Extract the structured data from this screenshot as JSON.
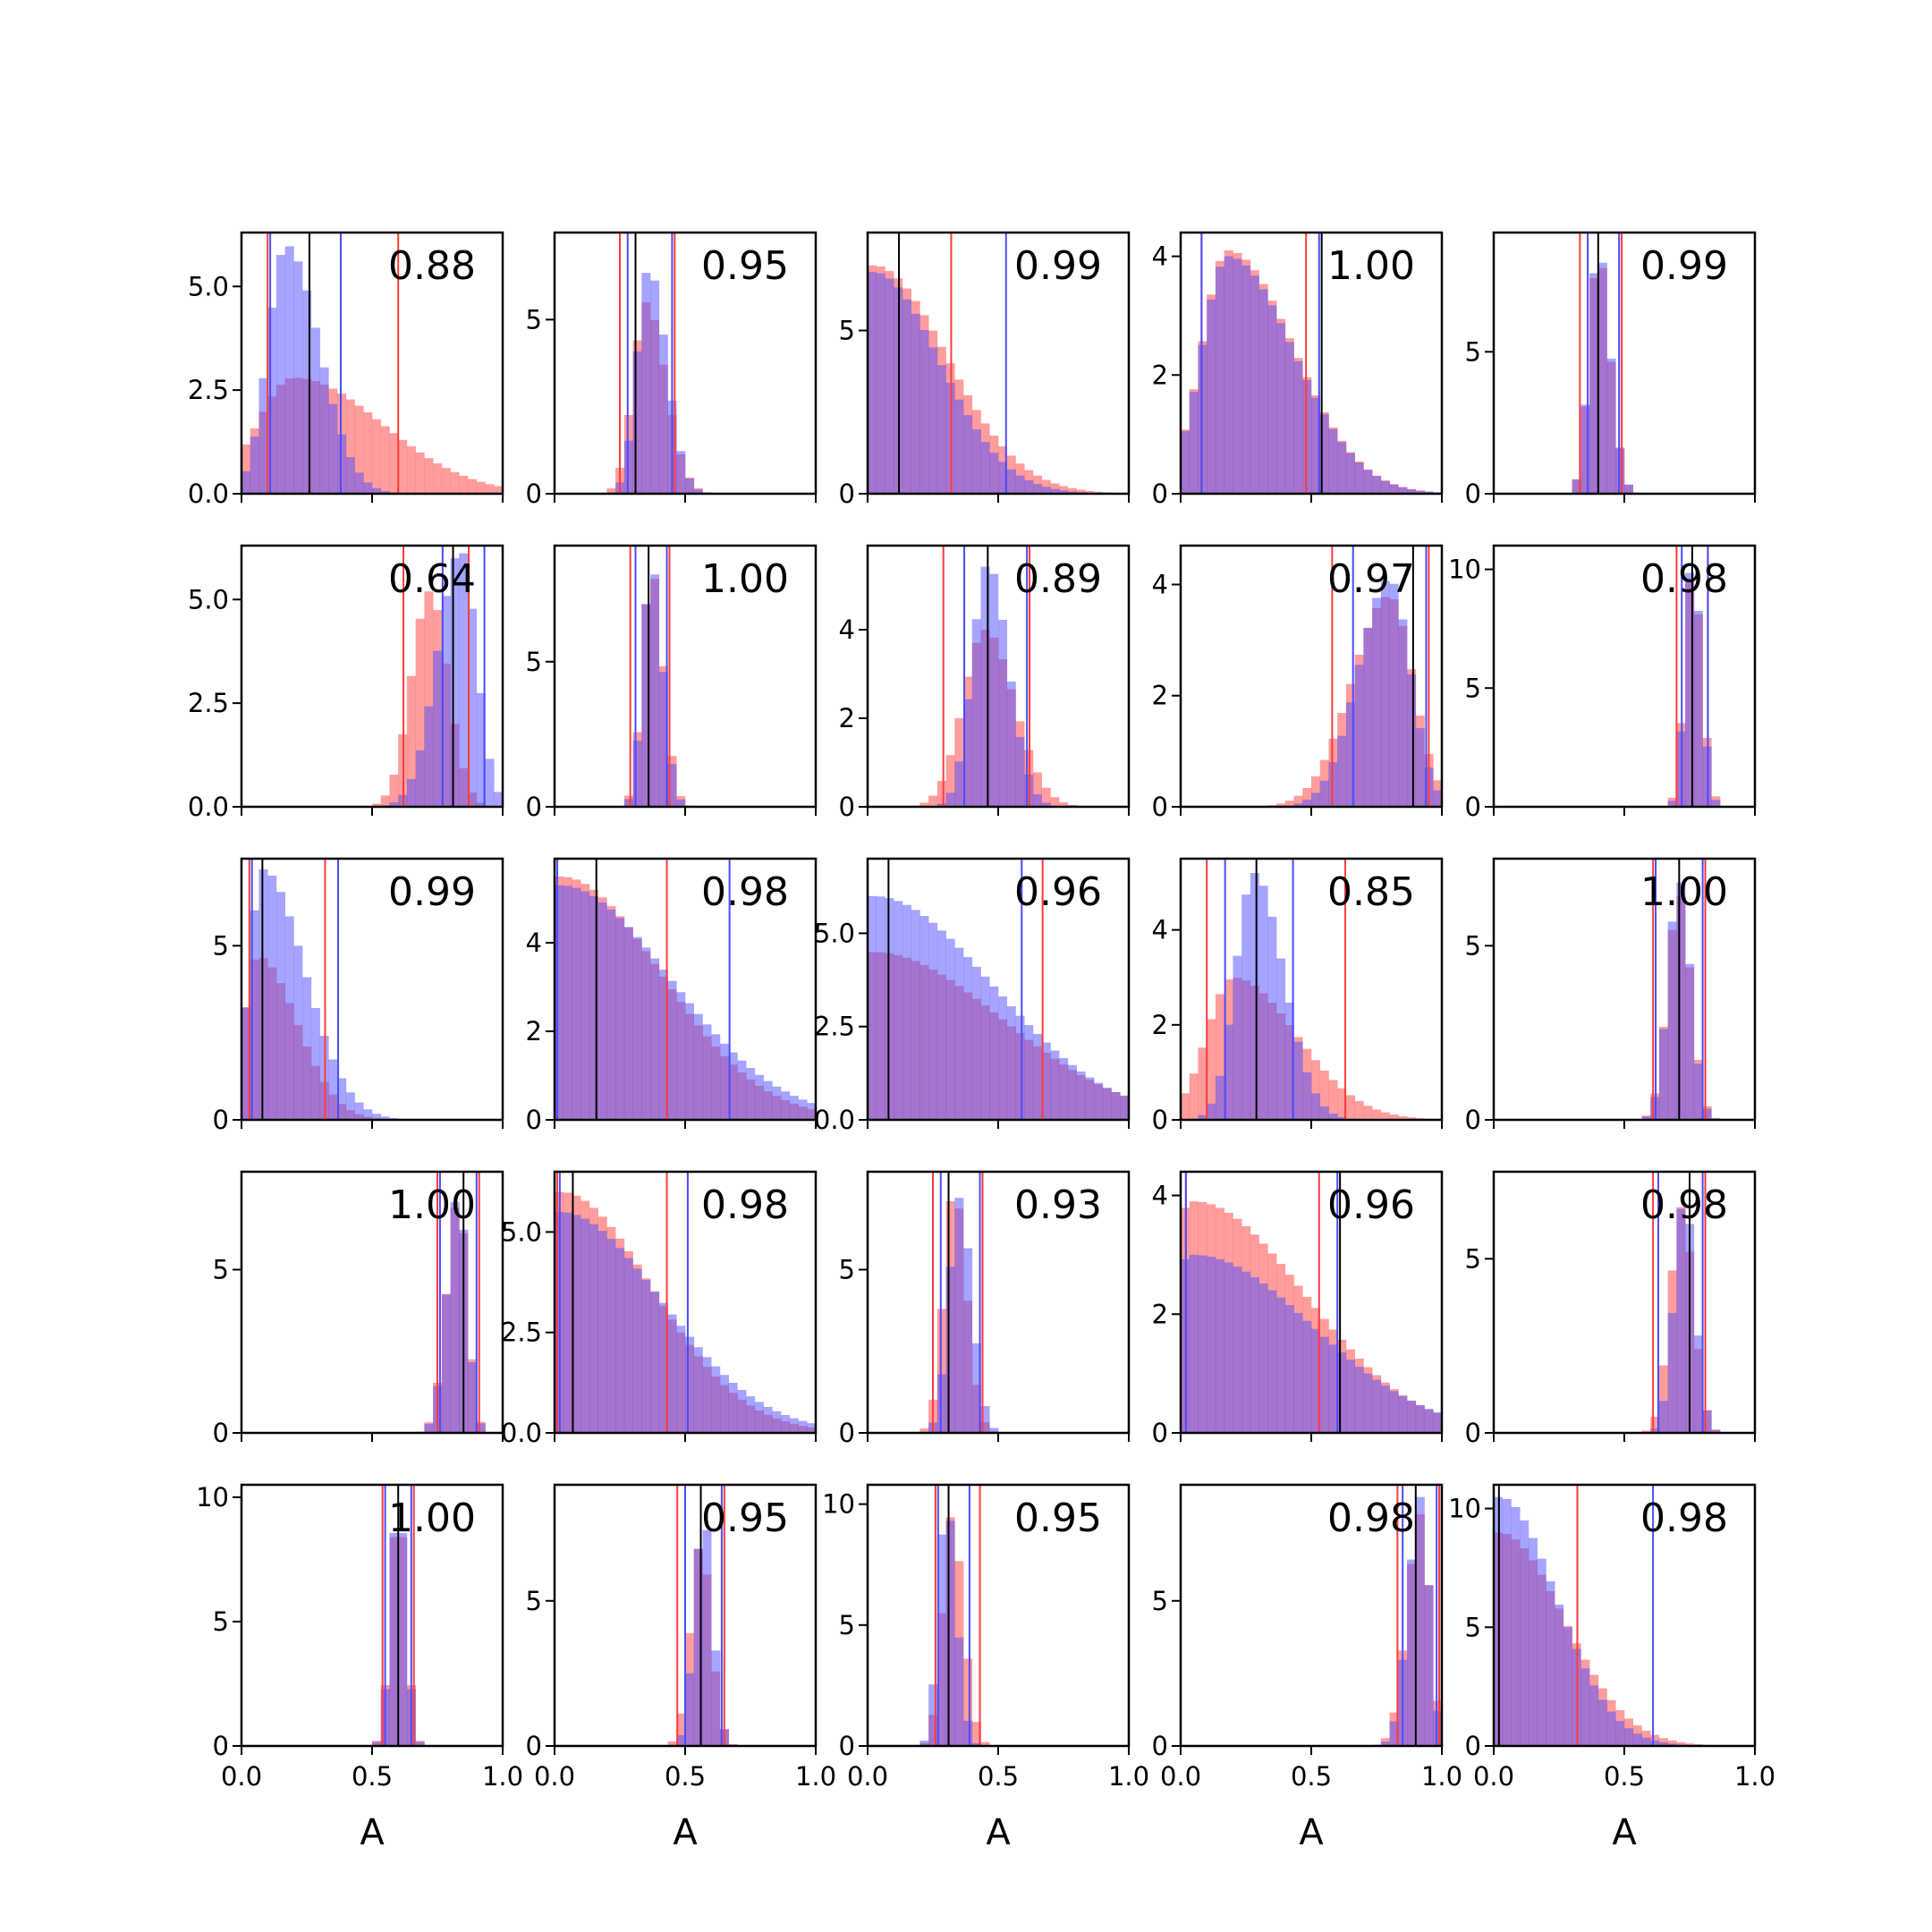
{
  "figure": {
    "xlabel": "A",
    "xticks": [
      "0.0",
      "0.5",
      "1.0"
    ]
  },
  "chart_data": {
    "type": "bar",
    "grid": "5x5 panels of overlaid histograms",
    "series_colors": {
      "red": "#ff3b3b",
      "blue": "#4b4bff",
      "black": "#000000"
    },
    "xlim": [
      0,
      1
    ],
    "panels": [
      {
        "label": "0.88",
        "ymax": 6.3,
        "yticks": [
          "0.0",
          "2.5",
          "5.0"
        ],
        "ytick_vals": [
          0,
          2.5,
          5
        ],
        "red": {
          "center": 0.2,
          "spread": 0.14,
          "skew": 1.4,
          "peak": 2.8
        },
        "blue": {
          "center": 0.17,
          "spread": 0.07,
          "skew": 0.8,
          "peak": 6.0
        },
        "lines": {
          "red": [
            0.1,
            0.6
          ],
          "blue": [
            0.11,
            0.38
          ],
          "black": [
            0.26
          ]
        }
      },
      {
        "label": "0.95",
        "ymax": 7.5,
        "yticks": [
          "0",
          "5"
        ],
        "ytick_vals": [
          0,
          5
        ],
        "red": {
          "center": 0.35,
          "spread": 0.05,
          "skew": 0.5,
          "peak": 5.5
        },
        "blue": {
          "center": 0.36,
          "spread": 0.045,
          "skew": 0.5,
          "peak": 6.5
        },
        "lines": {
          "red": [
            0.25,
            0.46
          ],
          "blue": [
            0.28,
            0.45
          ],
          "black": [
            0.31
          ]
        }
      },
      {
        "label": "0.99",
        "ymax": 8.0,
        "yticks": [
          "0",
          "5"
        ],
        "ytick_vals": [
          0,
          5
        ],
        "red": {
          "center": 0.02,
          "spread": 0.08,
          "skew": 2.5,
          "peak": 7.0
        },
        "blue": {
          "center": 0.02,
          "spread": 0.07,
          "skew": 2.6,
          "peak": 6.8
        },
        "lines": {
          "red": [
            0.0,
            0.32
          ],
          "blue": [
            0.0,
            0.53
          ],
          "black": [
            0.12
          ]
        }
      },
      {
        "label": "1.00",
        "ymax": 4.4,
        "yticks": [
          "0",
          "2",
          "4"
        ],
        "ytick_vals": [
          0,
          2,
          4
        ],
        "red": {
          "center": 0.18,
          "spread": 0.1,
          "skew": 1.5,
          "peak": 4.1
        },
        "blue": {
          "center": 0.18,
          "spread": 0.1,
          "skew": 1.5,
          "peak": 4.0
        },
        "lines": {
          "red": [
            0.08,
            0.48
          ],
          "blue": [
            0.08,
            0.53
          ],
          "black": [
            0.54
          ]
        }
      },
      {
        "label": "0.99",
        "ymax": 9.2,
        "yticks": [
          "0",
          "5"
        ],
        "ytick_vals": [
          0,
          5
        ],
        "red": {
          "center": 0.4,
          "spread": 0.035,
          "skew": 0.3,
          "peak": 8.5
        },
        "blue": {
          "center": 0.4,
          "spread": 0.035,
          "skew": 0.3,
          "peak": 8.7
        },
        "lines": {
          "red": [
            0.33,
            0.49
          ],
          "blue": [
            0.36,
            0.48
          ],
          "black": [
            0.4
          ]
        }
      },
      {
        "label": "0.64",
        "ymax": 6.3,
        "yticks": [
          "0.0",
          "2.5",
          "5.0"
        ],
        "ytick_vals": [
          0,
          2.5,
          5
        ],
        "red": {
          "center": 0.72,
          "spread": 0.07,
          "skew": 0.0,
          "peak": 5.2
        },
        "blue": {
          "center": 0.84,
          "spread": 0.06,
          "skew": -0.5,
          "peak": 6.2
        },
        "lines": {
          "red": [
            0.62,
            0.87
          ],
          "blue": [
            0.77,
            0.93
          ],
          "black": [
            0.81
          ]
        }
      },
      {
        "label": "1.00",
        "ymax": 9.0,
        "yticks": [
          "0",
          "5"
        ],
        "ytick_vals": [
          0,
          5
        ],
        "red": {
          "center": 0.37,
          "spread": 0.035,
          "skew": 0.3,
          "peak": 8.2
        },
        "blue": {
          "center": 0.37,
          "spread": 0.033,
          "skew": 0.3,
          "peak": 8.4
        },
        "lines": {
          "red": [
            0.29,
            0.44
          ],
          "blue": [
            0.31,
            0.43
          ],
          "black": [
            0.36
          ]
        }
      },
      {
        "label": "0.89",
        "ymax": 5.9,
        "yticks": [
          "0",
          "2",
          "4"
        ],
        "ytick_vals": [
          0,
          2,
          4
        ],
        "red": {
          "center": 0.45,
          "spread": 0.085,
          "skew": 0.3,
          "peak": 4.0
        },
        "blue": {
          "center": 0.46,
          "spread": 0.06,
          "skew": 0.3,
          "peak": 5.5
        },
        "lines": {
          "red": [
            0.29,
            0.62
          ],
          "blue": [
            0.37,
            0.61
          ],
          "black": [
            0.46
          ]
        }
      },
      {
        "label": "0.97",
        "ymax": 4.7,
        "yticks": [
          "0",
          "2",
          "4"
        ],
        "ytick_vals": [
          0,
          2,
          4
        ],
        "red": {
          "center": 0.8,
          "spread": 0.09,
          "skew": -0.6,
          "peak": 3.8
        },
        "blue": {
          "center": 0.8,
          "spread": 0.08,
          "skew": -0.5,
          "peak": 4.1
        },
        "lines": {
          "red": [
            0.58,
            0.95
          ],
          "blue": [
            0.66,
            0.94
          ],
          "black": [
            0.89
          ]
        }
      },
      {
        "label": "0.98",
        "ymax": 11.0,
        "yticks": [
          "0",
          "5",
          "10"
        ],
        "ytick_vals": [
          0,
          5,
          10
        ],
        "red": {
          "center": 0.76,
          "spread": 0.03,
          "skew": 0.2,
          "peak": 10.0
        },
        "blue": {
          "center": 0.76,
          "spread": 0.028,
          "skew": 0.2,
          "peak": 10.5
        },
        "lines": {
          "red": [
            0.7,
            0.82
          ],
          "blue": [
            0.72,
            0.82
          ],
          "black": [
            0.76
          ]
        }
      },
      {
        "label": "0.99",
        "ymax": 7.5,
        "yticks": [
          "0",
          "5"
        ],
        "ytick_vals": [
          0,
          5
        ],
        "red": {
          "center": 0.06,
          "spread": 0.05,
          "skew": 2.0,
          "peak": 4.7
        },
        "blue": {
          "center": 0.08,
          "spread": 0.05,
          "skew": 2.2,
          "peak": 7.2
        },
        "lines": {
          "red": [
            0.03,
            0.32
          ],
          "blue": [
            0.04,
            0.37
          ],
          "black": [
            0.08
          ]
        }
      },
      {
        "label": "0.98",
        "ymax": 5.9,
        "yticks": [
          "0",
          "2",
          "4"
        ],
        "ytick_vals": [
          0,
          2,
          4
        ],
        "red": {
          "center": 0.02,
          "spread": 0.11,
          "skew": 2.5,
          "peak": 5.5
        },
        "blue": {
          "center": 0.02,
          "spread": 0.12,
          "skew": 2.5,
          "peak": 5.3
        },
        "lines": {
          "red": [
            0.0,
            0.43
          ],
          "blue": [
            0.01,
            0.67
          ],
          "black": [
            0.16
          ]
        }
      },
      {
        "label": "0.96",
        "ymax": 7.0,
        "yticks": [
          "0.0",
          "2.5",
          "5.0"
        ],
        "ytick_vals": [
          0,
          2.5,
          5
        ],
        "red": {
          "center": 0.02,
          "spread": 0.14,
          "skew": 2.5,
          "peak": 4.5
        },
        "blue": {
          "center": 0.02,
          "spread": 0.13,
          "skew": 2.5,
          "peak": 6.0
        },
        "lines": {
          "red": [
            0.0,
            0.67
          ],
          "blue": [
            0.0,
            0.59
          ],
          "black": [
            0.08
          ]
        }
      },
      {
        "label": "0.85",
        "ymax": 5.5,
        "yticks": [
          "0",
          "2",
          "4"
        ],
        "ytick_vals": [
          0,
          2,
          4
        ],
        "red": {
          "center": 0.2,
          "spread": 0.1,
          "skew": 1.4,
          "peak": 3.0
        },
        "blue": {
          "center": 0.28,
          "spread": 0.07,
          "skew": 0.6,
          "peak": 5.2
        },
        "lines": {
          "red": [
            0.1,
            0.63
          ],
          "blue": [
            0.17,
            0.43
          ],
          "black": [
            0.29
          ]
        }
      },
      {
        "label": "1.00",
        "ymax": 7.5,
        "yticks": [
          "0",
          "5"
        ],
        "ytick_vals": [
          0,
          5
        ],
        "red": {
          "center": 0.71,
          "spread": 0.045,
          "skew": 0.0,
          "peak": 6.5
        },
        "blue": {
          "center": 0.71,
          "spread": 0.043,
          "skew": 0.0,
          "peak": 6.9
        },
        "lines": {
          "red": [
            0.61,
            0.81
          ],
          "blue": [
            0.62,
            0.8
          ],
          "black": [
            0.71
          ]
        }
      },
      {
        "label": "1.00",
        "ymax": 8.0,
        "yticks": [
          "0",
          "5"
        ],
        "ytick_vals": [
          0,
          5
        ],
        "red": {
          "center": 0.83,
          "spread": 0.035,
          "skew": -0.3,
          "peak": 7.2
        },
        "blue": {
          "center": 0.83,
          "spread": 0.034,
          "skew": -0.3,
          "peak": 7.4
        },
        "lines": {
          "red": [
            0.75,
            0.91
          ],
          "blue": [
            0.76,
            0.9
          ],
          "black": [
            0.85
          ]
        }
      },
      {
        "label": "0.98",
        "ymax": 6.5,
        "yticks": [
          "0.0",
          "2.5",
          "5.0"
        ],
        "ytick_vals": [
          0,
          2.5,
          5
        ],
        "red": {
          "center": 0.02,
          "spread": 0.1,
          "skew": 2.5,
          "peak": 6.0
        },
        "blue": {
          "center": 0.02,
          "spread": 0.11,
          "skew": 2.5,
          "peak": 5.5
        },
        "lines": {
          "red": [
            0.01,
            0.43
          ],
          "blue": [
            0.02,
            0.51
          ],
          "black": [
            0.07
          ]
        }
      },
      {
        "label": "0.93",
        "ymax": 8.0,
        "yticks": [
          "0",
          "5"
        ],
        "ytick_vals": [
          0,
          5
        ],
        "red": {
          "center": 0.33,
          "spread": 0.04,
          "skew": 0.2,
          "peak": 7.5
        },
        "blue": {
          "center": 0.35,
          "spread": 0.04,
          "skew": 0.2,
          "peak": 7.2
        },
        "lines": {
          "red": [
            0.25,
            0.44
          ],
          "blue": [
            0.28,
            0.43
          ],
          "black": [
            0.31
          ]
        }
      },
      {
        "label": "0.96",
        "ymax": 4.4,
        "yticks": [
          "0",
          "2",
          "4"
        ],
        "ytick_vals": [
          0,
          2,
          4
        ],
        "red": {
          "center": 0.05,
          "spread": 0.14,
          "skew": 2.0,
          "peak": 3.9
        },
        "blue": {
          "center": 0.05,
          "spread": 0.15,
          "skew": 2.0,
          "peak": 3.0
        },
        "lines": {
          "red": [
            0.02,
            0.53
          ],
          "blue": [
            0.02,
            0.6
          ],
          "black": [
            0.61
          ]
        }
      },
      {
        "label": "0.98",
        "ymax": 7.5,
        "yticks": [
          "0",
          "5"
        ],
        "ytick_vals": [
          0,
          5
        ],
        "red": {
          "center": 0.72,
          "spread": 0.045,
          "skew": 0.0,
          "peak": 6.5
        },
        "blue": {
          "center": 0.73,
          "spread": 0.04,
          "skew": 0.0,
          "peak": 6.8
        },
        "lines": {
          "red": [
            0.61,
            0.81
          ],
          "blue": [
            0.63,
            0.8
          ],
          "black": [
            0.75
          ]
        }
      },
      {
        "label": "1.00",
        "ymax": 10.5,
        "yticks": [
          "0",
          "5",
          "10"
        ],
        "ytick_vals": [
          0,
          5,
          10
        ],
        "red": {
          "center": 0.6,
          "spread": 0.03,
          "skew": 0.0,
          "peak": 9.8
        },
        "blue": {
          "center": 0.6,
          "spread": 0.029,
          "skew": 0.0,
          "peak": 10.1
        },
        "lines": {
          "red": [
            0.54,
            0.66
          ],
          "blue": [
            0.55,
            0.65
          ],
          "black": [
            0.6
          ]
        }
      },
      {
        "label": "0.95",
        "ymax": 9.0,
        "yticks": [
          "0",
          "5"
        ],
        "ytick_vals": [
          0,
          5
        ],
        "red": {
          "center": 0.56,
          "spread": 0.04,
          "skew": 0.0,
          "peak": 7.0
        },
        "blue": {
          "center": 0.57,
          "spread": 0.035,
          "skew": 0.0,
          "peak": 8.0
        },
        "lines": {
          "red": [
            0.47,
            0.65
          ],
          "blue": [
            0.5,
            0.64
          ],
          "black": [
            0.56
          ]
        }
      },
      {
        "label": "0.95",
        "ymax": 10.8,
        "yticks": [
          "0",
          "5",
          "10"
        ],
        "ytick_vals": [
          0,
          5,
          10
        ],
        "red": {
          "center": 0.32,
          "spread": 0.035,
          "skew": 0.3,
          "peak": 9.5
        },
        "blue": {
          "center": 0.3,
          "spread": 0.03,
          "skew": 0.3,
          "peak": 10.2
        },
        "lines": {
          "red": [
            0.26,
            0.43
          ],
          "blue": [
            0.27,
            0.39
          ],
          "black": [
            0.31
          ]
        }
      },
      {
        "label": "0.98",
        "ymax": 9.0,
        "yticks": [
          "0",
          "5"
        ],
        "ytick_vals": [
          0,
          5
        ],
        "red": {
          "center": 0.92,
          "spread": 0.035,
          "skew": -0.5,
          "peak": 8.0
        },
        "blue": {
          "center": 0.92,
          "spread": 0.032,
          "skew": -0.5,
          "peak": 8.6
        },
        "lines": {
          "red": [
            0.83,
            0.99
          ],
          "blue": [
            0.85,
            0.98
          ],
          "black": [
            0.9
          ]
        }
      },
      {
        "label": "0.98",
        "ymax": 11.0,
        "yticks": [
          "0",
          "5",
          "10"
        ],
        "ytick_vals": [
          0,
          5,
          10
        ],
        "red": {
          "center": 0.02,
          "spread": 0.07,
          "skew": 2.5,
          "peak": 9.0
        },
        "blue": {
          "center": 0.02,
          "spread": 0.06,
          "skew": 2.6,
          "peak": 10.5
        },
        "lines": {
          "red": [
            0.0,
            0.32
          ],
          "blue": [
            0.0,
            0.61
          ],
          "black": [
            0.02
          ]
        }
      }
    ]
  }
}
